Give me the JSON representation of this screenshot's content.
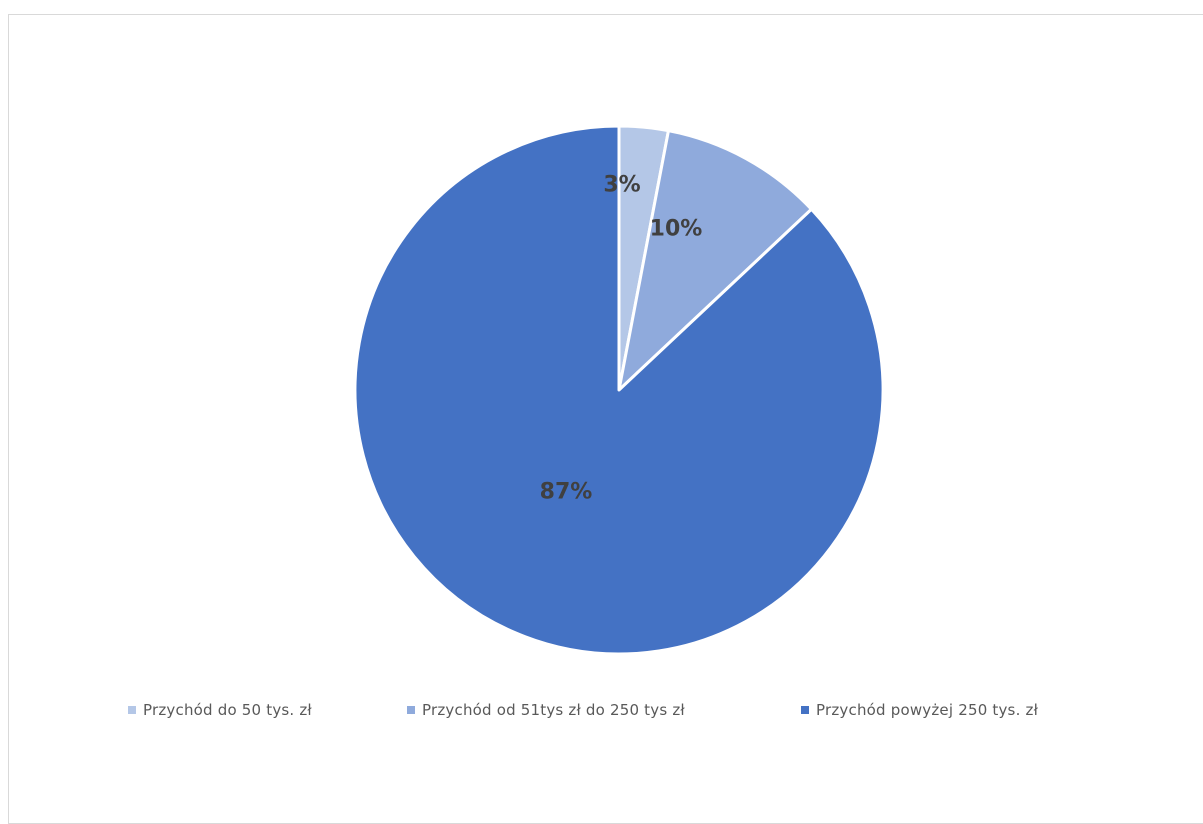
{
  "chart_data": {
    "type": "pie",
    "slices": [
      {
        "name": "Przychód do 50 tys. zł",
        "value": 3,
        "label": "3%",
        "color": "#b4c7e7"
      },
      {
        "name": "Przychód od 51tys zł do 250 tys zł",
        "value": 10,
        "label": "10%",
        "color": "#8faadc"
      },
      {
        "name": "Przychód powyżej 250 tys. zł",
        "value": 87,
        "label": "87%",
        "color": "#4472c4"
      }
    ],
    "legend_position": "bottom",
    "start_angle": "top",
    "direction": "clockwise"
  }
}
